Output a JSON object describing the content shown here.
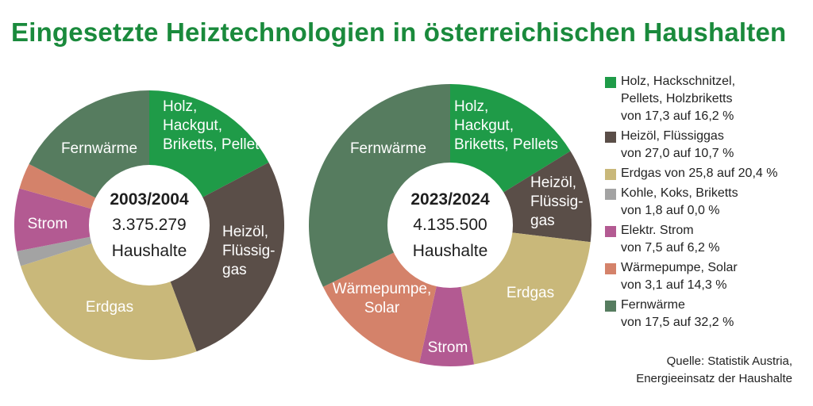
{
  "title": "Eingesetzte Heiztechnologien in österreichischen Haushalten",
  "chart_data": [
    {
      "type": "pie",
      "center_label": [
        "2003/2004",
        "3.375.279",
        "Haushalte"
      ],
      "categories": [
        "Holz, Hackgut, Briketts, Pellets",
        "Heizöl, Flüssiggas",
        "Erdgas",
        "Kohle, Koks, Briketts",
        "Strom",
        "Wärmepumpe, Solar",
        "Fernwärme"
      ],
      "values": [
        17.3,
        27.0,
        25.8,
        1.8,
        7.5,
        3.1,
        17.5
      ],
      "slice_labels": [
        "Holz,\nHackgut,\nBriketts, Pellets",
        "Heizöl,\nFlüssig-\ngas",
        "Erdgas",
        "",
        "Strom",
        "",
        "Fernwärme"
      ]
    },
    {
      "type": "pie",
      "center_label": [
        "2023/2024",
        "4.135.500",
        "Haushalte"
      ],
      "categories": [
        "Holz, Hackgut, Briketts, Pellets",
        "Heizöl, Flüssiggas",
        "Erdgas",
        "Kohle, Koks, Briketts",
        "Strom",
        "Wärmepumpe, Solar",
        "Fernwärme"
      ],
      "values": [
        16.2,
        10.7,
        20.4,
        0.0,
        6.2,
        14.3,
        32.2
      ],
      "slice_labels": [
        "Holz,\nHackgut,\nBriketts, Pellets",
        "Heizöl,\nFlüssig-\ngas",
        "Erdgas",
        "",
        "Strom",
        "Wärmepumpe,\nSolar",
        "Fernwärme"
      ]
    }
  ],
  "colors": [
    "#1f9b48",
    "#5a4e48",
    "#c9b87a",
    "#a3a3a3",
    "#b35a92",
    "#d4826a",
    "#567c5f"
  ],
  "legend": [
    {
      "line1": "Holz, Hackschnitzel,",
      "line2": "Pellets, Holzbriketts",
      "line3": "von 17,3 auf 16,2 %"
    },
    {
      "line1": "Heizöl, Flüssiggas",
      "line2": "von 27,0 auf 10,7 %",
      "line3": ""
    },
    {
      "line1": "Erdgas von 25,8 auf 20,4 %",
      "line2": "",
      "line3": ""
    },
    {
      "line1": "Kohle, Koks, Briketts",
      "line2": "von 1,8 auf 0,0 %",
      "line3": ""
    },
    {
      "line1": "Elektr. Strom",
      "line2": "von 7,5 auf 6,2 %",
      "line3": ""
    },
    {
      "line1": "Wärmepumpe, Solar",
      "line2": "von 3,1 auf 14,3 %",
      "line3": ""
    },
    {
      "line1": "Fernwärme",
      "line2": "von 17,5 auf 32,2 %",
      "line3": ""
    }
  ],
  "source": {
    "line1": "Quelle: Statistik Austria,",
    "line2": "Energieeinsatz der Haushalte"
  }
}
